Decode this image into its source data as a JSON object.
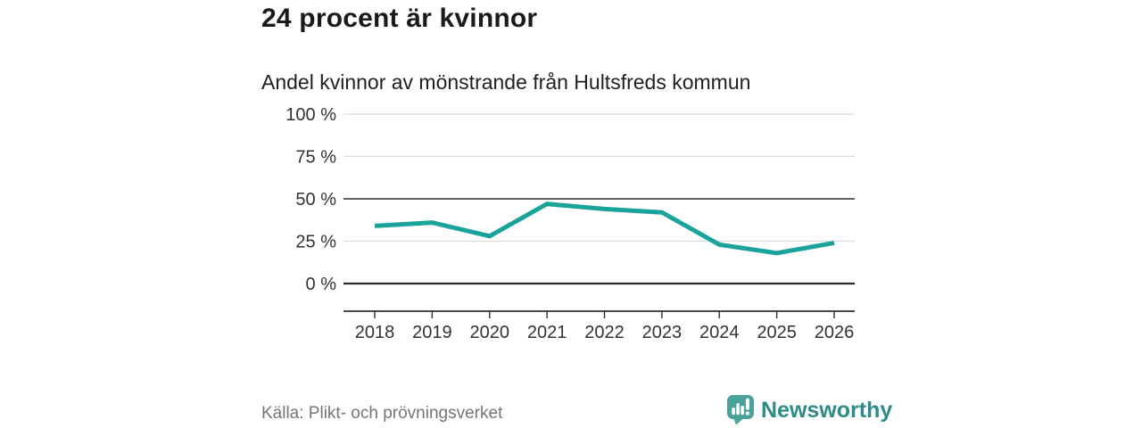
{
  "header": {
    "title": "24 procent är kvinnor",
    "subtitle": "Andel kvinnor av mönstrande från Hultsfreds kommun"
  },
  "chart_data": {
    "type": "line",
    "title": "24 procent är kvinnor",
    "subtitle": "Andel kvinnor av mönstrande från Hultsfreds kommun",
    "x": [
      2018,
      2019,
      2020,
      2021,
      2022,
      2023,
      2024,
      2025,
      2026
    ],
    "series": [
      {
        "name": "Andel kvinnor av mönstrande",
        "values": [
          34,
          36,
          28,
          47,
          44,
          42,
          23,
          18,
          24
        ],
        "color": "#1aa39b"
      }
    ],
    "xlabel": "",
    "ylabel": "",
    "ylim": [
      0,
      100
    ],
    "yticks": [
      0,
      25,
      50,
      75,
      100
    ],
    "ytick_labels": [
      "0 %",
      "25 %",
      "50 %",
      "75 %",
      "100 %"
    ],
    "xtick_labels": [
      "2018",
      "2019",
      "2020",
      "2021",
      "2022",
      "2023",
      "2024",
      "2025",
      "2026"
    ],
    "grid": true,
    "emphasized_gridlines": [
      0,
      50
    ],
    "legend_position": "none"
  },
  "footer": {
    "source": "Källa: Plikt- och prövningsverket",
    "brand": {
      "name": "Newsworthy",
      "logo_icon": "newsworthy-speech-bubble-barchart-icon"
    }
  },
  "colors": {
    "background": "#ffffff",
    "title": "#1a1a1a",
    "subtitle": "#1f1f1f",
    "axis_text": "#333333",
    "grid_light": "#dcdcdc",
    "grid_dark": "#4d4d4d",
    "grid_zero": "#2b2b2b",
    "axis_line": "#2e2e2e",
    "accent": "#1aa39b",
    "source_text": "#767676",
    "brand_text": "#2d8c88",
    "brand_badge": "#4ba29b"
  }
}
